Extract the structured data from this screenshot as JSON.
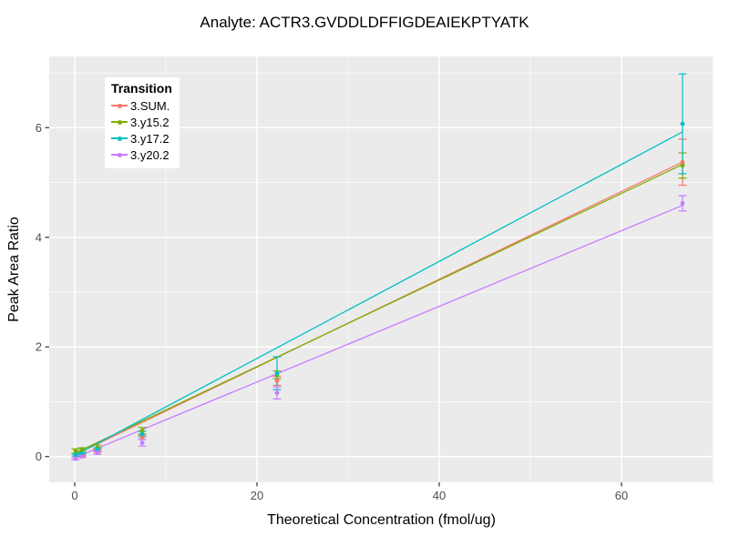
{
  "chart_data": {
    "type": "line",
    "title": "Analyte: ACTR3.GVDDLDFFIGDEAIEKPTYATK",
    "xlabel": "Theoretical Concentration (fmol/ug)",
    "ylabel": "Peak Area Ratio",
    "legend_title": "Transition",
    "legend_position": "top-left-inside",
    "panel_bg": "#EBEBEB",
    "grid_major_color": "#FFFFFF",
    "grid_minor_color": "#F7F7F7",
    "tick_color": "#333333",
    "tick_label_color": "#4D4D4D",
    "xlim": [
      -2.8,
      70.1
    ],
    "ylim": [
      -0.47,
      7.3
    ],
    "x_major_ticks": [
      0,
      20,
      40,
      60
    ],
    "x_minor_ticks": [
      10,
      30,
      50,
      70
    ],
    "y_major_ticks": [
      0,
      2,
      4,
      6
    ],
    "y_minor_ticks": [
      1,
      3,
      5,
      7
    ],
    "x_tick_labels": [
      "0",
      "20",
      "40",
      "60"
    ],
    "y_tick_labels": [
      "0",
      "2",
      "4",
      "6"
    ],
    "x": [
      0.1,
      0.8,
      2.5,
      7.4,
      22.2,
      66.7
    ],
    "series": [
      {
        "name": "3.SUM.",
        "color": "#F8766D",
        "values": [
          0.03,
          0.02,
          0.11,
          0.35,
          1.38,
          5.37
        ],
        "errors": [
          0.02,
          0.02,
          0.03,
          0.04,
          0.08,
          0.42
        ],
        "fit": {
          "intercept": 0.03,
          "slope": 0.0801
        }
      },
      {
        "name": "3.y15.2",
        "color": "#7CAE00",
        "values": [
          0.1,
          0.13,
          0.16,
          0.47,
          1.49,
          5.31
        ],
        "errors": [
          0.04,
          0.03,
          0.05,
          0.06,
          0.07,
          0.23
        ],
        "fit": {
          "intercept": 0.06,
          "slope": 0.079
        }
      },
      {
        "name": "3.y17.2",
        "color": "#00BFC4",
        "values": [
          0.03,
          0.05,
          0.13,
          0.41,
          1.52,
          6.07
        ],
        "errors": [
          0.02,
          0.02,
          0.03,
          0.05,
          0.3,
          0.91
        ],
        "fit": {
          "intercept": 0.02,
          "slope": 0.0885
        }
      },
      {
        "name": "3.y20.2",
        "color": "#C77CFF",
        "values": [
          -0.04,
          0.0,
          0.07,
          0.25,
          1.16,
          4.62
        ],
        "errors": [
          0.02,
          0.02,
          0.03,
          0.06,
          0.11,
          0.14
        ],
        "fit": {
          "intercept": -0.02,
          "slope": 0.069
        }
      }
    ]
  }
}
